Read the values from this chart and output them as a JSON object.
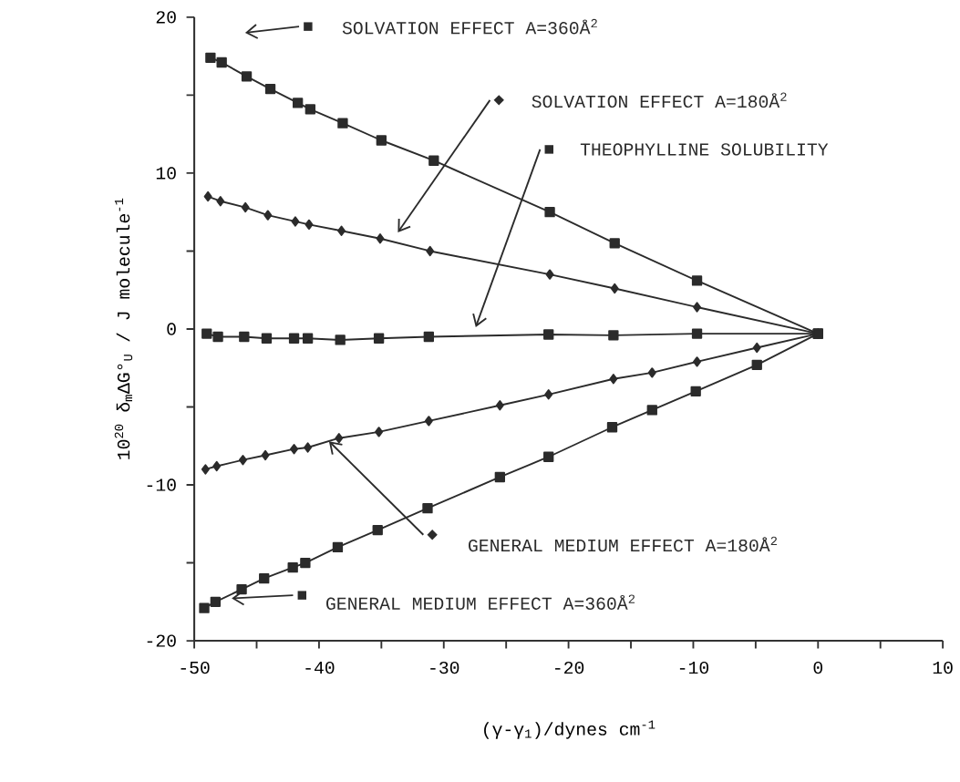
{
  "chart_data": {
    "type": "line",
    "xlabel": "(γ-γ$_{1}$)/dynes cm$^{-1}$",
    "ylabel": "10$^{20}$ δ$_{m}$ΔG°$_{U}$ / J molecule$^{-1}$",
    "xlim": [
      -50,
      10
    ],
    "ylim": [
      -20,
      20
    ],
    "xticks": [
      -50,
      {
        "value": -45,
        "label": null
      },
      -40,
      {
        "value": -35,
        "label": null
      },
      -30,
      {
        "value": -25,
        "label": null
      },
      -20,
      {
        "value": -15,
        "label": null
      },
      -10,
      {
        "value": -5,
        "label": null
      },
      0,
      {
        "value": 5,
        "label": null
      },
      10
    ],
    "yticks": [
      -20,
      {
        "value": -15,
        "label": null
      },
      -10,
      {
        "value": -5,
        "label": null
      },
      0,
      {
        "value": 5,
        "label": null
      },
      10,
      {
        "value": 15,
        "label": null
      },
      20
    ],
    "grid": false,
    "legend": "top right",
    "series": [
      {
        "name": "SOLVATION EFFECT  A=360Å$^{2}$",
        "color": "#2b2b2b",
        "marker": "square",
        "x": [
          -48.7,
          -47.8,
          -45.8,
          -43.9,
          -41.7,
          -40.7,
          -38.1,
          -35.0,
          -30.8,
          -21.5,
          -16.3,
          -9.7,
          0
        ],
        "values": [
          17.4,
          17.1,
          16.2,
          15.4,
          14.5,
          14.1,
          13.2,
          12.1,
          10.8,
          7.5,
          5.5,
          3.1,
          -0.3
        ]
      },
      {
        "name": "SOLVATION EFFECT A=180Å$^{2}$",
        "color": "#2b2b2b",
        "marker": "diamond",
        "x": [
          -48.9,
          -47.9,
          -45.9,
          -44.1,
          -41.9,
          -40.8,
          -38.2,
          -35.1,
          -31.1,
          -21.5,
          -16.3,
          -9.7,
          0
        ],
        "values": [
          8.5,
          8.2,
          7.8,
          7.3,
          6.9,
          6.7,
          6.3,
          5.8,
          5.0,
          3.5,
          2.6,
          1.4,
          -0.3
        ]
      },
      {
        "name": "THEOPHYLLINE SOLUBILITY",
        "color": "#2b2b2b",
        "marker": "square",
        "x": [
          -49.0,
          -48.1,
          -46.0,
          -44.2,
          -42.0,
          -40.9,
          -38.3,
          -35.2,
          -31.2,
          -21.6,
          -16.4,
          -9.7,
          0
        ],
        "values": [
          -0.3,
          -0.5,
          -0.5,
          -0.6,
          -0.6,
          -0.6,
          -0.7,
          -0.6,
          -0.5,
          -0.35,
          -0.4,
          -0.3,
          -0.3
        ]
      },
      {
        "name": "GENERAL MEDIUM EFFECT A=180Å$^{2}$",
        "color": "#2b2b2b",
        "marker": "diamond",
        "x": [
          -49.1,
          -48.2,
          -46.1,
          -44.3,
          -42.0,
          -40.9,
          -38.4,
          -35.2,
          -31.2,
          -25.5,
          -21.6,
          -16.4,
          -13.3,
          -9.7,
          -4.9,
          0
        ],
        "values": [
          -9.0,
          -8.8,
          -8.4,
          -8.1,
          -7.7,
          -7.6,
          -7.0,
          -6.6,
          -5.9,
          -4.9,
          -4.2,
          -3.2,
          -2.8,
          -2.1,
          -1.2,
          -0.3
        ]
      },
      {
        "name": "GENERAL MEDIUM EFFECT A=360Å$^{2}$",
        "color": "#2b2b2b",
        "marker": "square",
        "x": [
          -49.2,
          -48.3,
          -46.2,
          -44.4,
          -42.1,
          -41.1,
          -38.5,
          -35.3,
          -31.3,
          -25.5,
          -21.6,
          -16.5,
          -13.3,
          -9.8,
          -4.9,
          0
        ],
        "values": [
          -17.9,
          -17.5,
          -16.7,
          -16.0,
          -15.3,
          -15.0,
          -14.0,
          -12.9,
          -11.5,
          -9.5,
          -8.2,
          -6.3,
          -5.2,
          -4.0,
          -2.3,
          -0.3
        ]
      }
    ]
  }
}
